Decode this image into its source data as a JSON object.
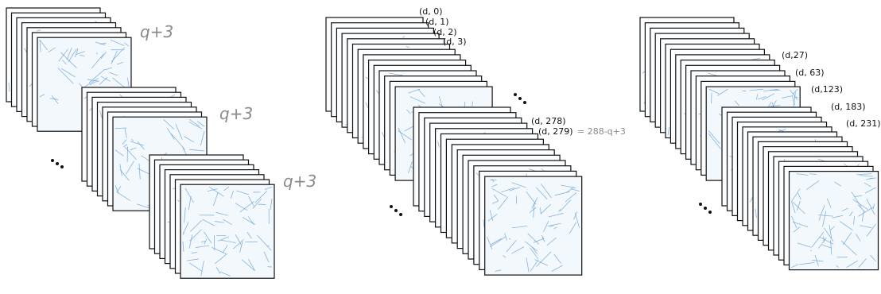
{
  "left": {
    "labels": [
      "q+3",
      "q+3",
      "q+3"
    ]
  },
  "middle": {
    "labels": [
      "(d, 0)",
      "(d, 1)",
      "(d, 2)",
      "(d, 3)",
      "(d, 278)",
      "(d, 279)"
    ],
    "note": "= 288-q+3"
  },
  "right": {
    "labels": [
      "(d,27)",
      "(d, 63)",
      "(d,123)",
      "(d, 183)",
      "(d, 231)"
    ]
  }
}
